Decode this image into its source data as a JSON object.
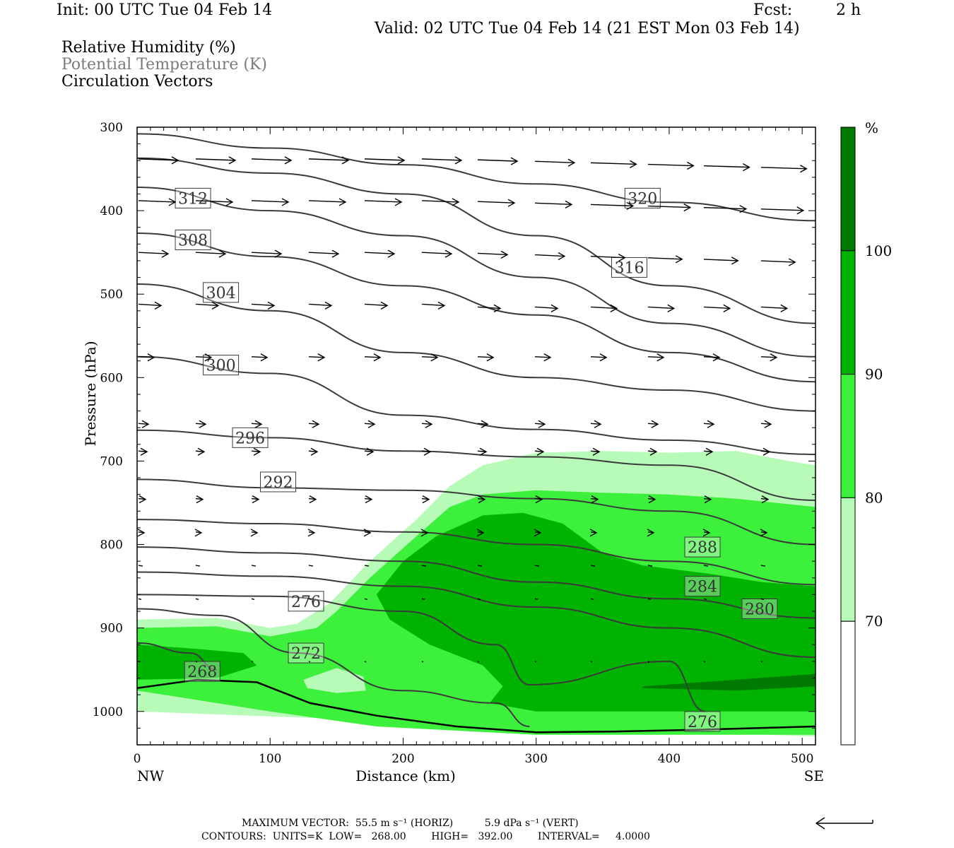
{
  "header": {
    "init": "Init: 00 UTC Tue 04 Feb 14",
    "fcst_label": "Fcst:",
    "fcst_value": "2 h",
    "valid": "Valid: 02 UTC Tue 04 Feb 14 (21 EST Mon 03 Feb 14)"
  },
  "legend": {
    "line1": "Relative Humidity (%)",
    "line2": "Potential Temperature (K)",
    "line3": "Circulation Vectors"
  },
  "colorbar": {
    "unit": "%",
    "levels": [
      "100",
      "90",
      "80",
      "70"
    ],
    "colors": [
      "#007a00",
      "#00b300",
      "#3cf03c",
      "#b8fbb8",
      "#ffffff"
    ]
  },
  "footer": {
    "line1": "MAXIMUM VECTOR:  55.5 m s⁻¹ (HORIZ)          5.9 dPa s⁻¹ (VERT)",
    "line2": "CONTOURS:  UNITS=K  LOW=   268.00        HIGH=   392.00        INTERVAL=     4.0000"
  },
  "chart_data": {
    "type": "cross-section",
    "xlabel": "Distance (km)",
    "ylabel": "Pressure (hPa)",
    "xlim": [
      0,
      510
    ],
    "ylim": [
      1040,
      300
    ],
    "x_ticks": [
      0,
      100,
      200,
      300,
      400,
      500
    ],
    "y_ticks": [
      300,
      400,
      500,
      600,
      700,
      800,
      900,
      1000
    ],
    "x_end_labels": {
      "left": "NW",
      "right": "SE"
    },
    "isentropes": [
      {
        "theta": 320,
        "x": [
          0,
          100,
          200,
          300,
          400,
          510
        ],
        "p": [
          308,
          325,
          345,
          368,
          390,
          412
        ],
        "label_at": [
          380,
          385
        ]
      },
      {
        "theta": 316,
        "x": [
          0,
          100,
          200,
          300,
          400,
          510
        ],
        "p": [
          337,
          355,
          380,
          430,
          490,
          535
        ],
        "label_at": [
          370,
          468
        ]
      },
      {
        "theta": 312,
        "x": [
          0,
          100,
          200,
          300,
          400,
          510
        ],
        "p": [
          372,
          400,
          430,
          480,
          535,
          575
        ],
        "label_at": [
          42,
          385
        ]
      },
      {
        "theta": 308,
        "x": [
          0,
          100,
          200,
          300,
          400,
          510
        ],
        "p": [
          427,
          455,
          490,
          525,
          570,
          605
        ],
        "label_at": [
          42,
          435
        ]
      },
      {
        "theta": 304,
        "x": [
          0,
          100,
          200,
          300,
          400,
          510
        ],
        "p": [
          488,
          520,
          570,
          600,
          615,
          640
        ],
        "label_at": [
          63,
          498
        ]
      },
      {
        "theta": 300,
        "x": [
          0,
          100,
          200,
          300,
          400,
          510
        ],
        "p": [
          575,
          595,
          645,
          662,
          675,
          692
        ],
        "label_at": [
          63,
          585
        ]
      },
      {
        "theta": 296,
        "x": [
          0,
          100,
          200,
          300,
          400,
          510
        ],
        "p": [
          663,
          672,
          688,
          695,
          705,
          747
        ],
        "label_at": [
          85,
          672
        ]
      },
      {
        "theta": 292,
        "x": [
          0,
          100,
          200,
          300,
          400,
          510
        ],
        "p": [
          722,
          732,
          735,
          745,
          760,
          800
        ],
        "label_at": [
          106,
          725
        ]
      },
      {
        "theta": 288,
        "x": [
          0,
          100,
          200,
          300,
          400,
          510
        ],
        "p": [
          770,
          775,
          785,
          800,
          820,
          848
        ],
        "label_at": [
          425,
          803
        ]
      },
      {
        "theta": 284,
        "x": [
          0,
          100,
          200,
          300,
          400,
          510
        ],
        "p": [
          803,
          810,
          820,
          845,
          865,
          888
        ],
        "label_at": [
          425,
          850
        ]
      },
      {
        "theta": 280,
        "x": [
          0,
          100,
          200,
          300,
          400,
          510
        ],
        "p": [
          833,
          838,
          850,
          875,
          900,
          935
        ],
        "label_at": [
          468,
          877
        ]
      },
      {
        "theta": 276,
        "x": [
          0,
          100,
          200,
          270,
          295,
          400,
          427
        ],
        "p": [
          860,
          862,
          880,
          920,
          968,
          940,
          1000
        ],
        "label_at": [
          127,
          868
        ]
      },
      {
        "theta": 272,
        "x": [
          0,
          60,
          120,
          200,
          270,
          295
        ],
        "p": [
          877,
          885,
          930,
          975,
          990,
          1018
        ],
        "label_at": [
          127,
          930
        ]
      },
      {
        "theta": 268,
        "x": [
          0,
          40,
          60
        ],
        "p": [
          918,
          930,
          950
        ],
        "label_at": [
          49,
          952
        ]
      }
    ],
    "extra_labels": [
      {
        "theta": 276,
        "label_at": [
          425,
          1012
        ]
      }
    ],
    "rh_fill_levels": [
      70,
      80,
      90,
      100
    ],
    "max_vector": {
      "horiz_m_s": 55.5,
      "vert_dPa_s": 5.9
    },
    "contours": {
      "units": "K",
      "low": 268.0,
      "high": 392.0,
      "interval": 4.0
    }
  }
}
